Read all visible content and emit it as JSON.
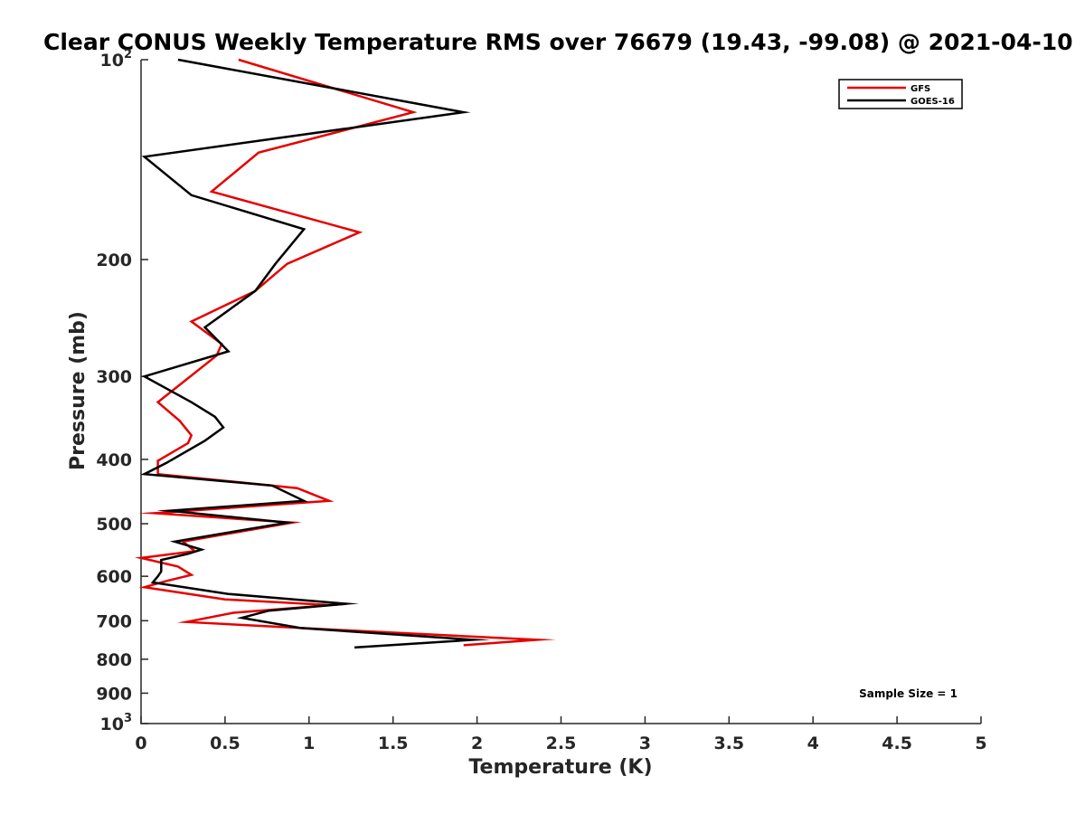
{
  "chart_data": {
    "type": "line",
    "title": "Clear CONUS Weekly Temperature RMS over 76679 (19.43, -99.08) @ 2021-04-10",
    "xlabel": "Temperature (K)",
    "ylabel": "Pressure (mb)",
    "xlim": [
      0,
      5
    ],
    "ylim": [
      100,
      1000
    ],
    "y_scale": "log",
    "y_reversed": true,
    "grid": false,
    "legend_position": "top-right",
    "x_ticks": [
      "0",
      "0.5",
      "1",
      "1.5",
      "2",
      "2.5",
      "3",
      "3.5",
      "4",
      "4.5",
      "5"
    ],
    "y_ticks": [
      {
        "value": 100,
        "base": "10",
        "exp": "2"
      },
      {
        "value": 200,
        "label": "200"
      },
      {
        "value": 300,
        "label": "300"
      },
      {
        "value": 400,
        "label": "400"
      },
      {
        "value": 500,
        "label": "500"
      },
      {
        "value": 600,
        "label": "600"
      },
      {
        "value": 700,
        "label": "700"
      },
      {
        "value": 800,
        "label": "800"
      },
      {
        "value": 900,
        "label": "900"
      },
      {
        "value": 1000,
        "base": "10",
        "exp": "3"
      }
    ],
    "series": [
      {
        "name": "GFS",
        "color": "#e60000",
        "points": [
          [
            0.58,
            100
          ],
          [
            1.62,
            120
          ],
          [
            0.7,
            138
          ],
          [
            0.42,
            158
          ],
          [
            1.3,
            182
          ],
          [
            0.87,
            203
          ],
          [
            0.68,
            223
          ],
          [
            0.3,
            248
          ],
          [
            0.48,
            268
          ],
          [
            0.45,
            279
          ],
          [
            0.1,
            328
          ],
          [
            0.23,
            350
          ],
          [
            0.3,
            368
          ],
          [
            0.28,
            378
          ],
          [
            0.1,
            402
          ],
          [
            0.1,
            421
          ],
          [
            0.93,
            442
          ],
          [
            1.12,
            462
          ],
          [
            0.08,
            482
          ],
          [
            0.9,
            498
          ],
          [
            0.25,
            532
          ],
          [
            0.32,
            550
          ],
          [
            0.0,
            563
          ],
          [
            0.22,
            580
          ],
          [
            0.3,
            597
          ],
          [
            0.15,
            610
          ],
          [
            0.02,
            623
          ],
          [
            0.5,
            650
          ],
          [
            1.13,
            663
          ],
          [
            0.55,
            681
          ],
          [
            0.27,
            703
          ],
          [
            1.05,
            720
          ],
          [
            2.36,
            748
          ],
          [
            1.92,
            762
          ]
        ]
      },
      {
        "name": "GOES-16",
        "color": "#000000",
        "points": [
          [
            0.22,
            100
          ],
          [
            1.92,
            120
          ],
          [
            0.02,
            140
          ],
          [
            0.3,
            160
          ],
          [
            0.97,
            180
          ],
          [
            0.8,
            203
          ],
          [
            0.68,
            223
          ],
          [
            0.38,
            253
          ],
          [
            0.52,
            275
          ],
          [
            0.02,
            300
          ],
          [
            0.3,
            328
          ],
          [
            0.44,
            345
          ],
          [
            0.49,
            358
          ],
          [
            0.38,
            375
          ],
          [
            0.15,
            405
          ],
          [
            0.02,
            421
          ],
          [
            0.78,
            438
          ],
          [
            0.97,
            462
          ],
          [
            0.17,
            478
          ],
          [
            0.87,
            498
          ],
          [
            0.2,
            532
          ],
          [
            0.36,
            547
          ],
          [
            0.28,
            555
          ],
          [
            0.12,
            567
          ],
          [
            0.12,
            590
          ],
          [
            0.1,
            600
          ],
          [
            0.07,
            613
          ],
          [
            0.52,
            638
          ],
          [
            1.22,
            660
          ],
          [
            0.76,
            676
          ],
          [
            0.6,
            693
          ],
          [
            0.95,
            718
          ],
          [
            1.98,
            748
          ],
          [
            1.27,
            768
          ]
        ]
      }
    ],
    "annotations": [
      {
        "text": "Sample Size = 1",
        "position": "bottom-right"
      }
    ]
  }
}
